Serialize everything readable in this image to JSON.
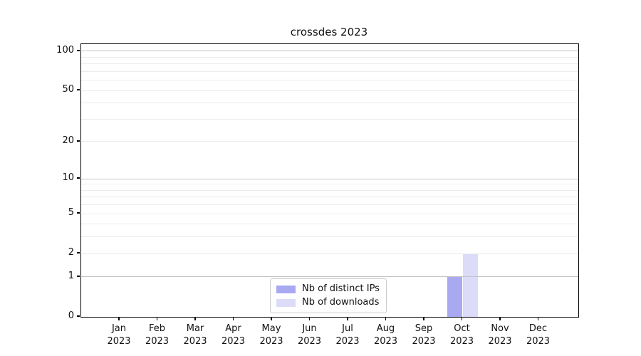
{
  "title": "crossdes 2023",
  "chart_data": {
    "type": "bar",
    "title": "crossdes 2023",
    "categories": [
      "Jan 2023",
      "Feb 2023",
      "Mar 2023",
      "Apr 2023",
      "May 2023",
      "Jun 2023",
      "Jul 2023",
      "Aug 2023",
      "Sep 2023",
      "Oct 2023",
      "Nov 2023",
      "Dec 2023"
    ],
    "series": [
      {
        "name": "Nb of distinct IPs",
        "color": "#a9a9f2",
        "values": [
          0,
          0,
          0,
          0,
          0,
          0,
          0,
          0,
          0,
          1,
          0,
          0
        ]
      },
      {
        "name": "Nb of downloads",
        "color": "#dcdcf8",
        "values": [
          0,
          0,
          0,
          0,
          0,
          0,
          0,
          0,
          0,
          2,
          0,
          0
        ]
      }
    ],
    "xlabel": "",
    "ylabel": "",
    "yscale": "log1p",
    "ylim": [
      0,
      113
    ],
    "yticks": [
      100,
      50,
      20,
      10,
      5,
      2,
      1,
      0
    ],
    "grid": {
      "on": true,
      "major": [
        1,
        10,
        100
      ],
      "minor": [
        2,
        3,
        4,
        5,
        6,
        7,
        8,
        9,
        20,
        30,
        40,
        50,
        60,
        70,
        80,
        90
      ],
      "major_color": "#c3c3c3",
      "minor_color": "#ececec"
    },
    "legend_position": "lower center",
    "background": "#ffffff",
    "text_color": "#111111"
  }
}
